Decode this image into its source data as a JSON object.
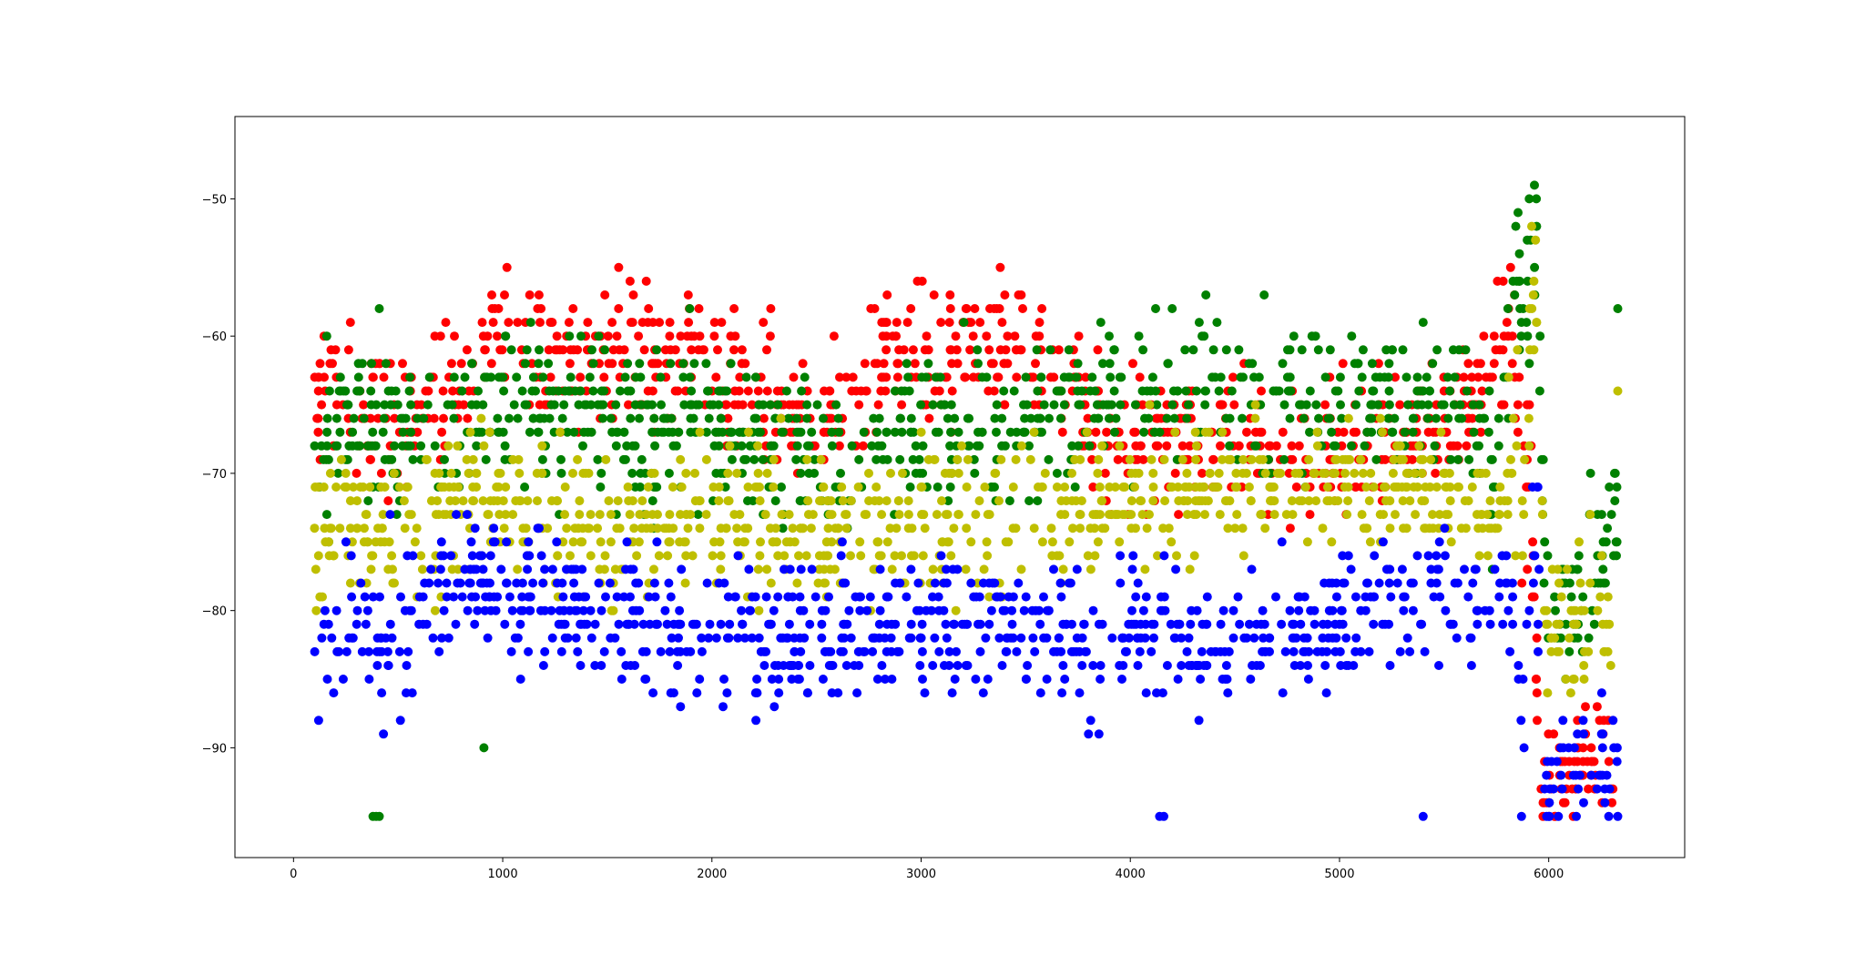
{
  "chart_data": {
    "type": "scatter",
    "title": "",
    "xlabel": "",
    "ylabel": "",
    "xlim": [
      -280,
      6650
    ],
    "ylim": [
      -98,
      -44
    ],
    "x_ticks": [
      0,
      1000,
      2000,
      3000,
      4000,
      5000,
      6000
    ],
    "x_tick_labels": [
      "0",
      "1000",
      "2000",
      "3000",
      "4000",
      "5000",
      "6000"
    ],
    "y_ticks": [
      -90,
      -80,
      -70,
      -60,
      -50
    ],
    "y_tick_labels": [
      "−90",
      "−80",
      "−70",
      "−60",
      "−50"
    ],
    "grid": false,
    "legend": "none",
    "marker": "circle",
    "series": [
      {
        "color": "#ff0000",
        "description": "red series, mostly around -68 to -58 over x 100-5800, rising to -57 near x 5800-5900, then near -95 to -87 after x 5950",
        "x_range": [
          100,
          6320
        ],
        "anchors": [
          [
            100,
            -64
          ],
          [
            300,
            -65
          ],
          [
            500,
            -66
          ],
          [
            700,
            -65
          ],
          [
            950,
            -60
          ],
          [
            1100,
            -61
          ],
          [
            1300,
            -63
          ],
          [
            1600,
            -61
          ],
          [
            1850,
            -62
          ],
          [
            2100,
            -63
          ],
          [
            2400,
            -66
          ],
          [
            2700,
            -66
          ],
          [
            2850,
            -60
          ],
          [
            3000,
            -62
          ],
          [
            3300,
            -61
          ],
          [
            3500,
            -61
          ],
          [
            3700,
            -64
          ],
          [
            3900,
            -67
          ],
          [
            4100,
            -68
          ],
          [
            4300,
            -68
          ],
          [
            4600,
            -67
          ],
          [
            4900,
            -68
          ],
          [
            5100,
            -68
          ],
          [
            5300,
            -66
          ],
          [
            5500,
            -66
          ],
          [
            5700,
            -63
          ],
          [
            5820,
            -58
          ],
          [
            5880,
            -70
          ],
          [
            5920,
            -70
          ],
          [
            5950,
            -92
          ],
          [
            6100,
            -92
          ],
          [
            6250,
            -91
          ],
          [
            6320,
            -91
          ]
        ],
        "spread": [
          2.5,
          3.2,
          3.5,
          3.0,
          3.2,
          3.0,
          3.0,
          3.0,
          3.0,
          3.0,
          3.0,
          3.0,
          3.0,
          3.0,
          3.0,
          3.0,
          3.0,
          3.5,
          3.5,
          3.2,
          3.0,
          3.0,
          3.5,
          3.0,
          3.0,
          3.0,
          3.0,
          6.0,
          6.0,
          2.5,
          2.5,
          2.5,
          2.5
        ]
      },
      {
        "color": "#008000",
        "description": "green series, mostly -72 to -61 across x 100-5800, outliers at -95 (x~400), -90 (x~900), -58 (x~400), peak to -46 near x 5940, then -85 to -75 after x 6000",
        "x_range": [
          100,
          6330
        ],
        "anchors": [
          [
            100,
            -68
          ],
          [
            300,
            -67
          ],
          [
            500,
            -68
          ],
          [
            700,
            -66
          ],
          [
            950,
            -65
          ],
          [
            1200,
            -66
          ],
          [
            1400,
            -65
          ],
          [
            1700,
            -67
          ],
          [
            2000,
            -66
          ],
          [
            2300,
            -68
          ],
          [
            2600,
            -68
          ],
          [
            2900,
            -68
          ],
          [
            3200,
            -67
          ],
          [
            3500,
            -66
          ],
          [
            3800,
            -65
          ],
          [
            4100,
            -64
          ],
          [
            4400,
            -64
          ],
          [
            4700,
            -65
          ],
          [
            5000,
            -64
          ],
          [
            5300,
            -65
          ],
          [
            5600,
            -65
          ],
          [
            5750,
            -70
          ],
          [
            5820,
            -56
          ],
          [
            5900,
            -58
          ],
          [
            5940,
            -50
          ],
          [
            5980,
            -78
          ],
          [
            6100,
            -80
          ],
          [
            6250,
            -77
          ],
          [
            6330,
            -72
          ]
        ],
        "spread": [
          4.0,
          4.0,
          4.0,
          3.5,
          3.5,
          3.5,
          3.5,
          3.5,
          3.5,
          3.5,
          3.5,
          3.5,
          3.5,
          3.5,
          3.5,
          3.5,
          3.0,
          3.5,
          3.0,
          3.0,
          3.0,
          4.0,
          5.0,
          5.0,
          4.0,
          4.0,
          3.5,
          3.5,
          4.0
        ],
        "extra_points": [
          [
            380,
            -95
          ],
          [
            395,
            -95
          ],
          [
            410,
            -95
          ],
          [
            910,
            -90
          ],
          [
            410,
            -58
          ],
          [
            6330,
            -58
          ],
          [
            6200,
            -70
          ]
        ]
      },
      {
        "color": "#bfbf00",
        "description": "yellow series, mostly -82 to -69 across x 100-5800, peak up to -49 near x 5940, then -90 to -76 after x 6000",
        "x_range": [
          100,
          6330
        ],
        "anchors": [
          [
            100,
            -74
          ],
          [
            300,
            -73
          ],
          [
            500,
            -75
          ],
          [
            700,
            -73
          ],
          [
            950,
            -72
          ],
          [
            1200,
            -74
          ],
          [
            1400,
            -74
          ],
          [
            1700,
            -74
          ],
          [
            2000,
            -73
          ],
          [
            2300,
            -74
          ],
          [
            2600,
            -74
          ],
          [
            2900,
            -74
          ],
          [
            3200,
            -74
          ],
          [
            3500,
            -73
          ],
          [
            3800,
            -72
          ],
          [
            4100,
            -72
          ],
          [
            4400,
            -71
          ],
          [
            4700,
            -71
          ],
          [
            5000,
            -71
          ],
          [
            5300,
            -71
          ],
          [
            5600,
            -72
          ],
          [
            5750,
            -74
          ],
          [
            5820,
            -70
          ],
          [
            5900,
            -64
          ],
          [
            5940,
            -55
          ],
          [
            5980,
            -80
          ],
          [
            6100,
            -81
          ],
          [
            6250,
            -80
          ],
          [
            6330,
            -80
          ]
        ],
        "spread": [
          3.5,
          3.5,
          3.5,
          3.5,
          3.5,
          3.5,
          3.5,
          3.5,
          3.5,
          3.5,
          3.5,
          3.5,
          3.5,
          3.5,
          3.0,
          3.0,
          2.5,
          2.5,
          2.5,
          2.5,
          2.5,
          3.0,
          6.0,
          6.0,
          5.0,
          4.0,
          3.5,
          4.0,
          5.0
        ],
        "extra_points": [
          [
            6330,
            -64
          ]
        ]
      },
      {
        "color": "#0000ff",
        "description": "blue series, mostly -87 to -75 across x 100-5800, outliers at -95 (x~4150, 5400) and -89, then -95 to -88 after x 5900",
        "x_range": [
          100,
          6330
        ],
        "anchors": [
          [
            100,
            -81
          ],
          [
            300,
            -82
          ],
          [
            500,
            -81
          ],
          [
            700,
            -78
          ],
          [
            950,
            -78
          ],
          [
            1200,
            -79
          ],
          [
            1400,
            -80
          ],
          [
            1700,
            -81
          ],
          [
            2000,
            -82
          ],
          [
            2300,
            -82
          ],
          [
            2600,
            -81
          ],
          [
            2900,
            -81
          ],
          [
            3200,
            -81
          ],
          [
            3500,
            -81
          ],
          [
            3800,
            -82
          ],
          [
            4100,
            -81
          ],
          [
            4400,
            -83
          ],
          [
            4700,
            -82
          ],
          [
            5000,
            -81
          ],
          [
            5300,
            -79
          ],
          [
            5600,
            -79
          ],
          [
            5750,
            -78
          ],
          [
            5820,
            -80
          ],
          [
            5880,
            -90
          ],
          [
            5940,
            -72
          ],
          [
            5980,
            -92
          ],
          [
            6100,
            -91
          ],
          [
            6250,
            -92
          ],
          [
            6330,
            -90
          ]
        ],
        "spread": [
          3.0,
          3.5,
          3.5,
          3.0,
          3.0,
          3.0,
          3.0,
          3.0,
          3.0,
          3.0,
          3.0,
          3.0,
          3.5,
          3.0,
          3.0,
          3.0,
          2.5,
          3.0,
          3.0,
          3.0,
          3.0,
          3.0,
          3.0,
          3.5,
          8.0,
          3.0,
          3.0,
          3.0,
          3.0
        ],
        "extra_points": [
          [
            4140,
            -95
          ],
          [
            4160,
            -95
          ],
          [
            5400,
            -95
          ],
          [
            120,
            -88
          ],
          [
            430,
            -89
          ],
          [
            1850,
            -87
          ],
          [
            3800,
            -89
          ],
          [
            3850,
            -89
          ],
          [
            6330,
            -95
          ],
          [
            5870,
            -95
          ],
          [
            5990,
            -95
          ],
          [
            6000,
            -95
          ]
        ]
      }
    ],
    "points_per_series": 900,
    "y_quantize": 1
  }
}
